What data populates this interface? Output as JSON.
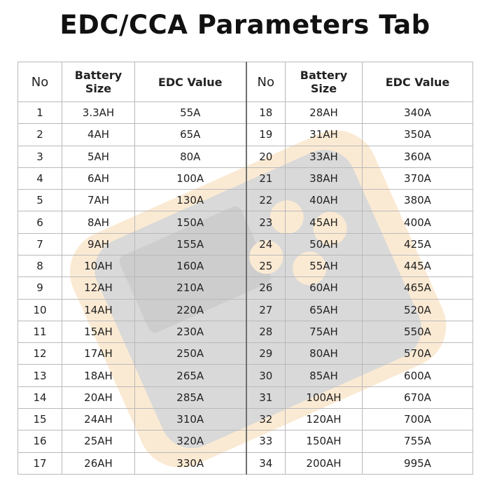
{
  "title": "EDC/CCA Parameters Tab",
  "colors": {
    "watermark_body": "#555555",
    "watermark_accent": "#f1a33c"
  },
  "headers": {
    "no": "No",
    "size": "Battery Size",
    "edc": "EDC Value"
  },
  "rows": [
    {
      "left": {
        "no": "1",
        "size": "3.3AH",
        "edc": "55A"
      },
      "right": {
        "no": "18",
        "size": "28AH",
        "edc": "340A"
      }
    },
    {
      "left": {
        "no": "2",
        "size": "4AH",
        "edc": "65A"
      },
      "right": {
        "no": "19",
        "size": "31AH",
        "edc": "350A"
      }
    },
    {
      "left": {
        "no": "3",
        "size": "5AH",
        "edc": "80A"
      },
      "right": {
        "no": "20",
        "size": "33AH",
        "edc": "360A"
      }
    },
    {
      "left": {
        "no": "4",
        "size": "6AH",
        "edc": "100A"
      },
      "right": {
        "no": "21",
        "size": "38AH",
        "edc": "370A"
      }
    },
    {
      "left": {
        "no": "5",
        "size": "7AH",
        "edc": "130A"
      },
      "right": {
        "no": "22",
        "size": "40AH",
        "edc": "380A"
      }
    },
    {
      "left": {
        "no": "6",
        "size": "8AH",
        "edc": "150A"
      },
      "right": {
        "no": "23",
        "size": "45AH",
        "edc": "400A"
      }
    },
    {
      "left": {
        "no": "7",
        "size": "9AH",
        "edc": "155A"
      },
      "right": {
        "no": "24",
        "size": "50AH",
        "edc": "425A"
      }
    },
    {
      "left": {
        "no": "8",
        "size": "10AH",
        "edc": "160A"
      },
      "right": {
        "no": "25",
        "size": "55AH",
        "edc": "445A"
      }
    },
    {
      "left": {
        "no": "9",
        "size": "12AH",
        "edc": "210A"
      },
      "right": {
        "no": "26",
        "size": "60AH",
        "edc": "465A"
      }
    },
    {
      "left": {
        "no": "10",
        "size": "14AH",
        "edc": "220A"
      },
      "right": {
        "no": "27",
        "size": "65AH",
        "edc": "520A"
      }
    },
    {
      "left": {
        "no": "11",
        "size": "15AH",
        "edc": "230A"
      },
      "right": {
        "no": "28",
        "size": "75AH",
        "edc": "550A"
      }
    },
    {
      "left": {
        "no": "12",
        "size": "17AH",
        "edc": "250A"
      },
      "right": {
        "no": "29",
        "size": "80AH",
        "edc": "570A"
      }
    },
    {
      "left": {
        "no": "13",
        "size": "18AH",
        "edc": "265A"
      },
      "right": {
        "no": "30",
        "size": "85AH",
        "edc": "600A"
      }
    },
    {
      "left": {
        "no": "14",
        "size": "20AH",
        "edc": "285A"
      },
      "right": {
        "no": "31",
        "size": "100AH",
        "edc": "670A"
      }
    },
    {
      "left": {
        "no": "15",
        "size": "24AH",
        "edc": "310A"
      },
      "right": {
        "no": "32",
        "size": "120AH",
        "edc": "700A"
      }
    },
    {
      "left": {
        "no": "16",
        "size": "25AH",
        "edc": "320A"
      },
      "right": {
        "no": "33",
        "size": "150AH",
        "edc": "755A"
      }
    },
    {
      "left": {
        "no": "17",
        "size": "26AH",
        "edc": "330A"
      },
      "right": {
        "no": "34",
        "size": "200AH",
        "edc": "995A"
      }
    }
  ]
}
